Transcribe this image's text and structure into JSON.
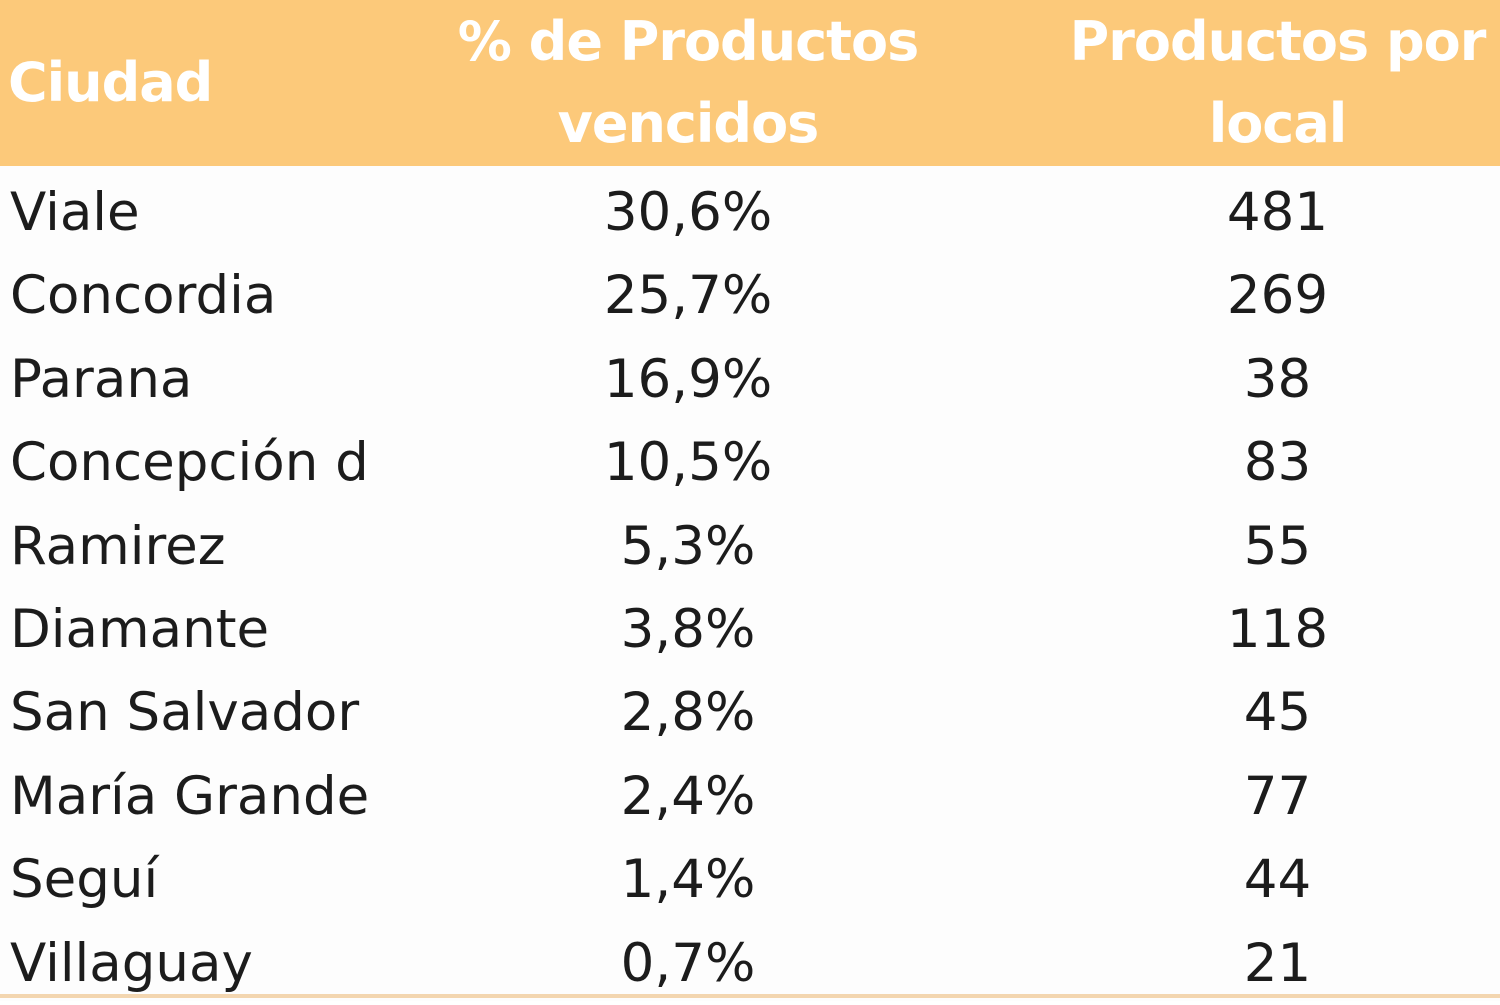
{
  "colors": {
    "header_bg": "#fcc97a",
    "header_text": "#ffffff",
    "body_text": "#1c1c1c",
    "bottom_rule": "#f3d6b0"
  },
  "chart_data": {
    "type": "table",
    "columns": [
      "Ciudad",
      "% de Productos\nvencidos",
      "Productos por\nlocal"
    ],
    "rows": [
      [
        "Viale",
        "30,6%",
        "481"
      ],
      [
        "Concordia",
        "25,7%",
        "269"
      ],
      [
        "Parana",
        "16,9%",
        "38"
      ],
      [
        "Concepción d",
        "10,5%",
        "83"
      ],
      [
        "Ramirez",
        "5,3%",
        "55"
      ],
      [
        "Diamante",
        "3,8%",
        "118"
      ],
      [
        "San Salvador",
        "2,8%",
        "45"
      ],
      [
        "María Grande",
        "2,4%",
        "77"
      ],
      [
        "Seguí",
        "1,4%",
        "44"
      ],
      [
        "Villaguay",
        "0,7%",
        "21"
      ]
    ]
  }
}
